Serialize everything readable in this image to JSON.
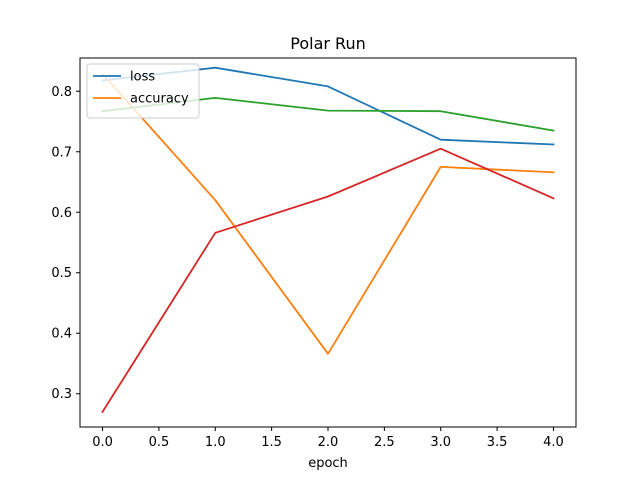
{
  "chart_data": {
    "type": "line",
    "title": "Polar Run",
    "xlabel": "epoch",
    "ylabel": "",
    "x": [
      0,
      1,
      2,
      3,
      4
    ],
    "xlim": [
      -0.2,
      4.2
    ],
    "ylim": [
      0.245,
      0.855
    ],
    "xticks": [
      "0.0",
      "0.5",
      "1.0",
      "1.5",
      "2.0",
      "2.5",
      "3.0",
      "3.5",
      "4.0"
    ],
    "yticks": [
      "0.3",
      "0.4",
      "0.5",
      "0.6",
      "0.7",
      "0.8"
    ],
    "grid": false,
    "legend_position": "top-left",
    "series": [
      {
        "name": "loss",
        "color": "#1f77b4",
        "values": [
          0.818,
          0.839,
          0.808,
          0.72,
          0.712
        ]
      },
      {
        "name": "accuracy",
        "color": "#ff7f0e",
        "values": [
          0.829,
          0.62,
          0.366,
          0.675,
          0.666
        ]
      },
      {
        "color": "#2ca02c",
        "values": [
          0.767,
          0.789,
          0.768,
          0.767,
          0.735
        ]
      },
      {
        "color": "#d62728",
        "values": [
          0.27,
          0.566,
          0.626,
          0.705,
          0.623
        ]
      }
    ]
  }
}
